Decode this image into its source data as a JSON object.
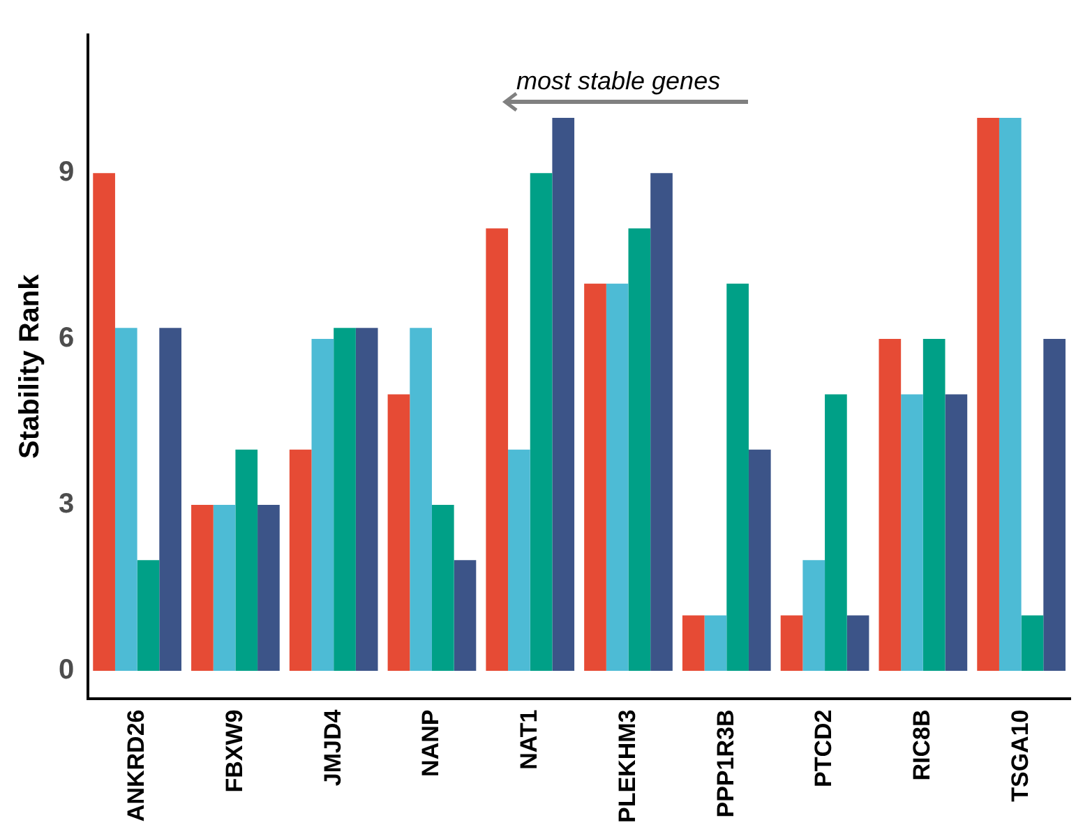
{
  "chart_data": {
    "type": "bar",
    "ylabel": "Stability Rank",
    "categories": [
      "ANKRD26",
      "FBXW9",
      "JMJD4",
      "NANP",
      "NAT1",
      "PLEKHM3",
      "PPP1R3B",
      "PTCD2",
      "RIC8B",
      "TSGA10"
    ],
    "series": [
      {
        "color": "#e64b35",
        "values": [
          9,
          3,
          4,
          5,
          8,
          7,
          1,
          1,
          6,
          10
        ]
      },
      {
        "color": "#4dbbd5",
        "values": [
          6.2,
          3,
          6,
          6.2,
          4,
          7,
          1,
          2,
          5,
          10
        ]
      },
      {
        "color": "#00a087",
        "values": [
          2,
          4,
          6.2,
          3,
          9,
          8,
          7,
          5,
          6,
          1
        ]
      },
      {
        "color": "#3c5488",
        "values": [
          6.2,
          3,
          6.2,
          2,
          10,
          9,
          4,
          1,
          5,
          6
        ]
      }
    ],
    "ylim": [
      -0.5,
      11.5
    ],
    "yticks": [
      0,
      3,
      6,
      9
    ],
    "grid": false,
    "legend": false,
    "annotations": [
      "most stable genes"
    ]
  }
}
